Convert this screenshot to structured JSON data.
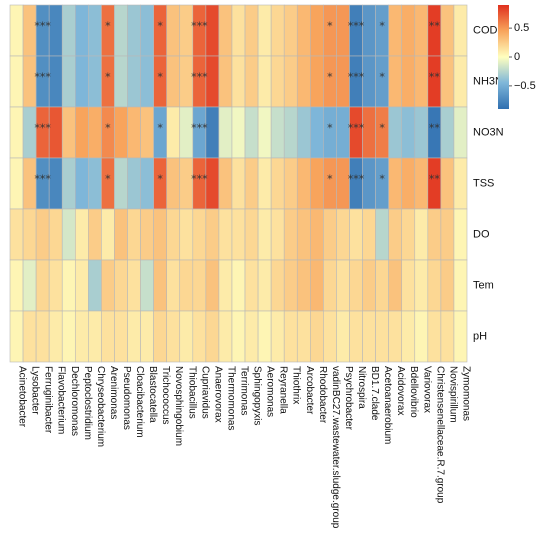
{
  "chart_data": {
    "type": "heatmap",
    "title": "",
    "rows": [
      "COD",
      "NH3N",
      "NO3N",
      "TSS",
      "DO",
      "Tem",
      "pH"
    ],
    "columns": [
      "Acinetobacter",
      "Lysobacter",
      "Ferruginibacter",
      "Flavobacterium",
      "Dechloromonas",
      "Peptoclostridium",
      "Chryseobacterium",
      "Arenimonas",
      "Pseudomonas",
      "Cloacibacterium",
      "Blastocatella",
      "Trichococcus",
      "Novosphingobium",
      "Thiobacillus",
      "Cupriavidus",
      "Anaerovorax",
      "Thermomonas",
      "Terrimonas",
      "Sphingopyxis",
      "Aeromonas",
      "Reyranella",
      "Thiothrix",
      "Arcobacter",
      "Rhodobacter",
      "vadinBC27.wastewater.sludge.group",
      "Psychrobacter",
      "Nitrospira",
      "BD1.7.clade",
      "Acetoanaerobium",
      "Acidovorax",
      "Bdellovibrio",
      "Variovorax",
      "Christensenellaceae.R.7.group",
      "Novispirillum",
      "Zymomonas"
    ],
    "values": [
      [
        0.05,
        0.3,
        -0.7,
        -0.75,
        -0.3,
        -0.45,
        -0.4,
        0.65,
        -0.25,
        -0.35,
        -0.4,
        0.7,
        0.3,
        0.25,
        0.7,
        0.8,
        0.3,
        0.15,
        0.25,
        0.1,
        0.2,
        0.25,
        0.35,
        0.45,
        0.5,
        0.5,
        -0.8,
        -0.65,
        -0.6,
        0.35,
        0.4,
        0.35,
        0.85,
        0.3,
        0.1
      ],
      [
        0.05,
        0.3,
        -0.7,
        -0.75,
        -0.3,
        -0.45,
        -0.4,
        0.65,
        -0.25,
        -0.35,
        -0.4,
        0.7,
        0.3,
        0.25,
        0.7,
        0.8,
        0.3,
        0.15,
        0.25,
        0.1,
        0.2,
        0.25,
        0.35,
        0.45,
        0.5,
        0.5,
        -0.8,
        -0.65,
        -0.6,
        0.35,
        0.4,
        0.35,
        0.85,
        0.3,
        0.1
      ],
      [
        0.05,
        -0.3,
        0.7,
        0.75,
        0.3,
        0.45,
        0.4,
        0.55,
        0.45,
        0.35,
        0.3,
        -0.55,
        0.1,
        -0.1,
        -0.55,
        -0.8,
        -0.1,
        -0.05,
        -0.2,
        -0.05,
        -0.2,
        -0.25,
        -0.35,
        -0.45,
        -0.5,
        -0.5,
        0.8,
        0.65,
        0.6,
        -0.35,
        -0.4,
        -0.35,
        -0.85,
        -0.3,
        -0.1
      ],
      [
        0.05,
        0.3,
        -0.7,
        -0.75,
        -0.3,
        -0.45,
        -0.4,
        0.65,
        -0.25,
        -0.35,
        -0.4,
        0.7,
        0.3,
        0.25,
        0.7,
        0.8,
        0.3,
        0.15,
        0.25,
        0.1,
        0.2,
        0.25,
        0.35,
        0.45,
        0.5,
        0.5,
        -0.8,
        -0.65,
        -0.6,
        0.35,
        0.4,
        0.35,
        0.85,
        0.3,
        0.1
      ],
      [
        0.15,
        0.2,
        0.25,
        0.2,
        -0.15,
        0.1,
        0.25,
        0.1,
        0.3,
        0.2,
        0.25,
        0.3,
        0.2,
        0.15,
        0.2,
        0.25,
        0.15,
        0.15,
        0.2,
        0.1,
        0.15,
        0.25,
        0.3,
        0.35,
        0.25,
        0.2,
        0.15,
        0.2,
        -0.25,
        0.25,
        0.2,
        0.1,
        0.25,
        0.25,
        0.05
      ],
      [
        0.05,
        -0.1,
        0.2,
        0.15,
        0.05,
        0.1,
        -0.3,
        0.25,
        0.2,
        0.15,
        -0.2,
        0.3,
        0.15,
        0.2,
        0.2,
        0.3,
        0.1,
        0.05,
        0.15,
        0.1,
        0.2,
        0.25,
        0.3,
        0.35,
        0.2,
        0.15,
        0.2,
        0.25,
        0.2,
        0.3,
        0.15,
        0.1,
        0.2,
        0.25,
        0.05
      ],
      [
        0.05,
        0.15,
        0.15,
        0.1,
        0.05,
        0.1,
        0.1,
        0.15,
        0.15,
        0.1,
        0.1,
        0.2,
        0.15,
        0.1,
        0.15,
        0.2,
        0.1,
        0.05,
        0.1,
        0.05,
        0.1,
        0.15,
        0.15,
        0.2,
        0.15,
        0.1,
        0.15,
        0.15,
        0.15,
        0.15,
        0.1,
        0.05,
        0.15,
        0.15,
        0.05
      ]
    ],
    "significance": [
      [
        "",
        "",
        "***",
        "",
        "",
        "",
        "",
        "*",
        "",
        "",
        "",
        "*",
        "",
        "",
        "***",
        "",
        "",
        "",
        "",
        "",
        "",
        "",
        "",
        "",
        "*",
        "",
        "***",
        "",
        "*",
        "",
        "",
        "",
        "**",
        "",
        ""
      ],
      [
        "",
        "",
        "***",
        "",
        "",
        "",
        "",
        "*",
        "",
        "",
        "",
        "*",
        "",
        "",
        "***",
        "",
        "",
        "",
        "",
        "",
        "",
        "",
        "",
        "",
        "*",
        "",
        "***",
        "",
        "*",
        "",
        "",
        "",
        "**",
        "",
        ""
      ],
      [
        "",
        "",
        "***",
        "",
        "",
        "",
        "",
        "*",
        "",
        "",
        "",
        "*",
        "",
        "",
        "***",
        "",
        "",
        "",
        "",
        "",
        "",
        "",
        "",
        "",
        "*",
        "",
        "***",
        "",
        "*",
        "",
        "",
        "",
        "**",
        "",
        ""
      ],
      [
        "",
        "",
        "***",
        "",
        "",
        "",
        "",
        "*",
        "",
        "",
        "",
        "*",
        "",
        "",
        "***",
        "",
        "",
        "",
        "",
        "",
        "",
        "",
        "",
        "",
        "*",
        "",
        "***",
        "",
        "*",
        "",
        "",
        "",
        "**",
        "",
        ""
      ],
      [
        "",
        "",
        "",
        "",
        "",
        "",
        "",
        "",
        "",
        "",
        "",
        "",
        "",
        "",
        "",
        "",
        "",
        "",
        "",
        "",
        "",
        "",
        "",
        "",
        "",
        "",
        "",
        "",
        "",
        "",
        "",
        "",
        "",
        "",
        ""
      ],
      [
        "",
        "",
        "",
        "",
        "",
        "",
        "",
        "",
        "",
        "",
        "",
        "",
        "",
        "",
        "",
        "",
        "",
        "",
        "",
        "",
        "",
        "",
        "",
        "",
        "",
        "",
        "",
        "",
        "",
        "",
        "",
        "",
        "",
        "",
        ""
      ],
      [
        "",
        "",
        "",
        "",
        "",
        "",
        "",
        "",
        "",
        "",
        "",
        "",
        "",
        "",
        "",
        "",
        "",
        "",
        "",
        "",
        "",
        "",
        "",
        "",
        "",
        "",
        "",
        "",
        "",
        "",
        "",
        "",
        "",
        "",
        ""
      ]
    ],
    "color_scale": {
      "min": -0.9,
      "max": 0.9,
      "colors": [
        "#2f6fb0",
        "#7eb6d9",
        "#ffffbf",
        "#f8a45c",
        "#e0301e"
      ],
      "ticks": [
        0.5,
        0,
        -0.5
      ],
      "tick_labels": [
        "0.5",
        "0",
        "−0.5"
      ]
    },
    "legend_position": "top-right"
  }
}
